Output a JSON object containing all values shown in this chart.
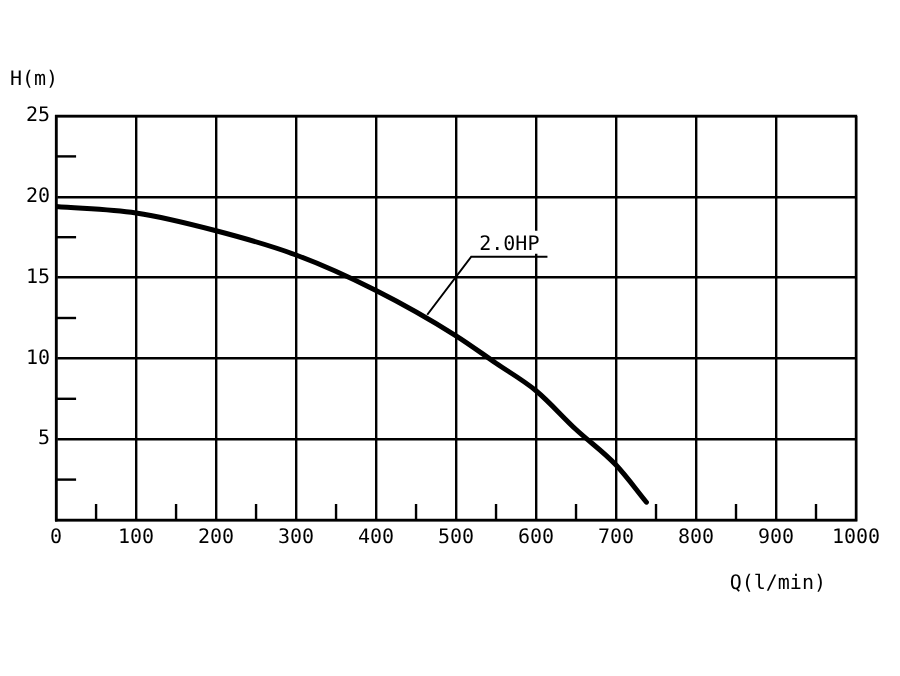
{
  "chart_data": {
    "type": "line",
    "xlabel": "Q(l/min)",
    "ylabel": "H(m)",
    "x": [
      0,
      100,
      200,
      300,
      400,
      500,
      550,
      600,
      650,
      700,
      738
    ],
    "series": [
      {
        "color": "#000000",
        "values": [
          19.4,
          19.0,
          17.9,
          16.4,
          14.2,
          11.4,
          9.7,
          8.0,
          5.6,
          3.4,
          1.1
        ]
      }
    ],
    "xlim": [
      0,
      1000
    ],
    "ylim": [
      0,
      25
    ],
    "xticks": [
      0,
      {
        "value": 50,
        "label": null
      },
      100,
      {
        "value": 150,
        "label": null
      },
      200,
      {
        "value": 250,
        "label": null
      },
      300,
      {
        "value": 350,
        "label": null
      },
      400,
      {
        "value": 450,
        "label": null
      },
      500,
      {
        "value": 550,
        "label": null
      },
      600,
      {
        "value": 650,
        "label": null
      },
      700,
      {
        "value": 750,
        "label": null
      },
      800,
      {
        "value": 850,
        "label": null
      },
      900,
      {
        "value": 950,
        "label": null
      },
      1000
    ],
    "yticks": [
      {
        "value": 0,
        "label": null
      },
      {
        "value": 2.5,
        "label": null
      },
      5,
      {
        "value": 7.5,
        "label": null
      },
      10,
      {
        "value": 12.5,
        "label": null
      },
      15,
      {
        "value": 17.5,
        "label": null
      },
      20,
      {
        "value": 22.5,
        "label": null
      },
      25
    ],
    "grid": true,
    "marker": "none",
    "line_style": "solid",
    "legend": false,
    "annotations": [
      {
        "text": "2.0HP",
        "x": 464,
        "y": 12.7
      }
    ]
  }
}
